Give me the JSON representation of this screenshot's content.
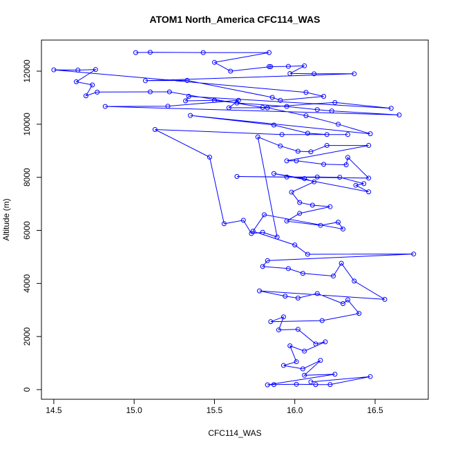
{
  "chart_data": {
    "type": "line",
    "title": "ATOM1 North_America CFC114_WAS",
    "x_label": "CFC114_WAS",
    "y_label": "Altitude (m)",
    "markers": "circle",
    "xlim": [
      14.423,
      16.831
    ],
    "ylim": [
      -364,
      13171
    ],
    "xticks": [
      14.5,
      {
        "value": 15,
        "label": "15.0"
      },
      15.5,
      {
        "value": 16,
        "label": "16.0"
      },
      16.5
    ],
    "yticks": [
      0,
      2000,
      4000,
      6000,
      8000,
      10000,
      12000
    ],
    "x": [
      15.01,
      15.1,
      15.43,
      15.84,
      15.5,
      15.6,
      15.85,
      15.84,
      15.96,
      16.06,
      15.97,
      16.12,
      16.37,
      15.07,
      15.33,
      15.86,
      15.91,
      16.18,
      16.07,
      14.5,
      14.65,
      14.76,
      14.64,
      14.74,
      14.7,
      14.77,
      15.1,
      15.22,
      15.8,
      16.25,
      16.6,
      15.34,
      15.32,
      15.5,
      15.64,
      15.95,
      16.14,
      16.23,
      16.65,
      14.82,
      15.21,
      15.65,
      15.59,
      15.83,
      16.07,
      16.27,
      16.47,
      15.35,
      15.87,
      16.08,
      16.2,
      16.33,
      15.92,
      15.13,
      15.47,
      15.56,
      15.68,
      15.73,
      15.8,
      15.89,
      15.77,
      15.91,
      16.02,
      16.1,
      16.2,
      16.46,
      15.95,
      16.01,
      16.18,
      16.32,
      16.33,
      16.46,
      15.64,
      15.95,
      16.14,
      16.28,
      16.43,
      16.38,
      16.46,
      15.87,
      16.06,
      16.12,
      15.98,
      16.03,
      16.11,
      16.22,
      16.03,
      15.95,
      16.16,
      16.27,
      16.3,
      15.81,
      15.74,
      16.0,
      16.08,
      16.74,
      15.83,
      15.8,
      15.96,
      16.05,
      16.24,
      16.29,
      16.37,
      16.56,
      15.78,
      15.94,
      16.02,
      16.14,
      16.3,
      16.33,
      16.4,
      16.17,
      15.85,
      15.93,
      15.9,
      16.02,
      16.13,
      16.19,
      16.06,
      15.97,
      16.01,
      15.93,
      16.05,
      16.16,
      16.06,
      16.25,
      15.83,
      15.87,
      16.01,
      16.13,
      16.22,
      16.47,
      16.1
    ],
    "series": [
      {
        "color": "#0000ff",
        "values": [
          12700,
          12710,
          12700,
          12700,
          12330,
          12000,
          12170,
          12170,
          12180,
          12200,
          11910,
          11900,
          11900,
          11640,
          11650,
          11010,
          10900,
          11050,
          11200,
          12050,
          12040,
          12060,
          11600,
          11480,
          11070,
          11210,
          11220,
          11220,
          10630,
          10820,
          10600,
          11050,
          10880,
          10900,
          10800,
          10670,
          10550,
          10500,
          10350,
          10670,
          10680,
          10900,
          10620,
          10620,
          10320,
          10000,
          9640,
          10330,
          9970,
          9660,
          9610,
          9610,
          9610,
          9800,
          8760,
          6250,
          6380,
          5880,
          5930,
          5750,
          9520,
          9180,
          8980,
          8960,
          9200,
          9200,
          8620,
          8620,
          8490,
          8470,
          8750,
          7970,
          8030,
          8010,
          8010,
          8000,
          7760,
          7700,
          7450,
          8140,
          7950,
          7830,
          7440,
          7050,
          6950,
          6890,
          6640,
          6350,
          6190,
          6310,
          6050,
          6590,
          5970,
          5450,
          5100,
          5110,
          4860,
          4640,
          4560,
          4380,
          4280,
          4760,
          4090,
          3400,
          3720,
          3520,
          3450,
          3620,
          3240,
          3380,
          2870,
          2600,
          2560,
          2740,
          2250,
          2270,
          1720,
          1800,
          1450,
          1650,
          1050,
          910,
          780,
          1100,
          540,
          580,
          180,
          190,
          200,
          190,
          190,
          490,
          290
        ]
      }
    ]
  }
}
